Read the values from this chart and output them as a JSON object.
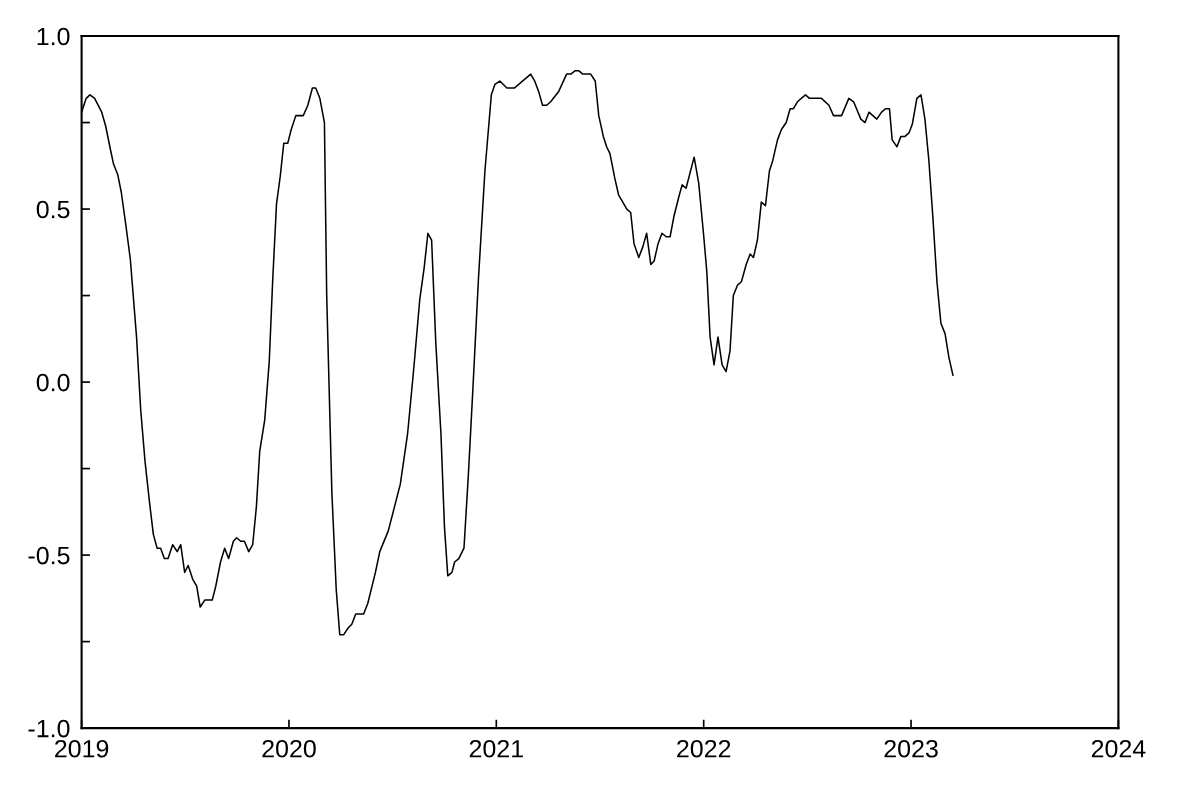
{
  "chart_data": {
    "type": "line",
    "xlim": [
      2019,
      2024
    ],
    "xticks": [
      2019,
      2020,
      2021,
      2022,
      2023,
      2024
    ],
    "ylim": [
      -1.0,
      1.0
    ],
    "yticks": [
      {
        "value": -1.0,
        "label": "-1.0"
      },
      {
        "value": -0.75,
        "label": null
      },
      {
        "value": -0.5,
        "label": "-0.5"
      },
      {
        "value": -0.25,
        "label": null
      },
      {
        "value": 0.0,
        "label": "0.0"
      },
      {
        "value": 0.25,
        "label": null
      },
      {
        "value": 0.5,
        "label": "0.5"
      },
      {
        "value": 0.75,
        "label": null
      },
      {
        "value": 1.0,
        "label": "1.0"
      }
    ],
    "grid": false,
    "marker": "none",
    "line_style": "solid",
    "series": [
      {
        "color": "#000000",
        "x": [
          2019.0,
          2019.022,
          2019.04,
          2019.063,
          2019.097,
          2019.116,
          2019.138,
          2019.154,
          2019.174,
          2019.191,
          2019.212,
          2019.235,
          2019.249,
          2019.265,
          2019.285,
          2019.306,
          2019.328,
          2019.346,
          2019.364,
          2019.381,
          2019.399,
          2019.417,
          2019.439,
          2019.461,
          2019.478,
          2019.497,
          2019.514,
          2019.536,
          2019.555,
          2019.572,
          2019.594,
          2019.63,
          2019.647,
          2019.67,
          2019.69,
          2019.709,
          2019.732,
          2019.748,
          2019.767,
          2019.785,
          2019.806,
          2019.825,
          2019.843,
          2019.859,
          2019.883,
          2019.905,
          2019.922,
          2019.94,
          2019.958,
          2019.975,
          2019.994,
          2020.011,
          2020.033,
          2020.069,
          2020.091,
          2020.113,
          2020.129,
          2020.149,
          2020.171,
          2020.182,
          2020.207,
          2020.228,
          2020.245,
          2020.264,
          2020.286,
          2020.303,
          2020.322,
          2020.36,
          2020.38,
          2020.417,
          2020.438,
          2020.479,
          2020.537,
          2020.572,
          2020.602,
          2020.631,
          2020.652,
          2020.67,
          2020.688,
          2020.708,
          2020.733,
          2020.75,
          2020.766,
          2020.786,
          2020.799,
          2020.819,
          2020.844,
          2020.865,
          2020.887,
          2020.914,
          2020.945,
          2020.976,
          2020.993,
          2021.017,
          2021.051,
          2021.088,
          2021.166,
          2021.185,
          2021.204,
          2021.223,
          2021.243,
          2021.262,
          2021.301,
          2021.339,
          2021.359,
          2021.381,
          2021.397,
          2021.417,
          2021.455,
          2021.477,
          2021.494,
          2021.516,
          2021.532,
          2021.548,
          2021.571,
          2021.59,
          2021.61,
          2021.629,
          2021.648,
          2021.664,
          2021.687,
          2021.706,
          2021.725,
          2021.745,
          2021.761,
          2021.78,
          2021.799,
          2021.819,
          2021.838,
          2021.857,
          2021.88,
          2021.896,
          2021.915,
          2021.954,
          2021.976,
          2021.999,
          2022.015,
          2022.031,
          2022.05,
          2022.069,
          2022.089,
          2022.108,
          2022.127,
          2022.143,
          2022.163,
          2022.182,
          2022.205,
          2022.224,
          2022.24,
          2022.259,
          2022.278,
          2022.298,
          2022.317,
          2022.333,
          2022.356,
          2022.375,
          2022.398,
          2022.417,
          2022.433,
          2022.452,
          2022.491,
          2022.51,
          2022.568,
          2022.604,
          2022.626,
          2022.665,
          2022.7,
          2022.723,
          2022.758,
          2022.778,
          2022.797,
          2022.835,
          2022.858,
          2022.877,
          2022.896,
          2022.909,
          2022.932,
          2022.951,
          2022.971,
          2022.99,
          2023.006,
          2023.028,
          2023.048,
          2023.067,
          2023.086,
          2023.106,
          2023.125,
          2023.144,
          2023.164,
          2023.183,
          2023.202
        ],
        "values": [
          0.78,
          0.82,
          0.83,
          0.82,
          0.78,
          0.74,
          0.675,
          0.63,
          0.6,
          0.55,
          0.46,
          0.355,
          0.25,
          0.13,
          -0.08,
          -0.23,
          -0.35,
          -0.44,
          -0.48,
          -0.48,
          -0.51,
          -0.51,
          -0.47,
          -0.49,
          -0.47,
          -0.55,
          -0.53,
          -0.57,
          -0.59,
          -0.65,
          -0.63,
          -0.63,
          -0.59,
          -0.52,
          -0.48,
          -0.51,
          -0.46,
          -0.45,
          -0.46,
          -0.46,
          -0.49,
          -0.47,
          -0.36,
          -0.2,
          -0.11,
          0.06,
          0.3,
          0.515,
          0.595,
          0.69,
          0.69,
          0.73,
          0.77,
          0.77,
          0.8,
          0.85,
          0.85,
          0.82,
          0.75,
          0.25,
          -0.32,
          -0.6,
          -0.73,
          -0.73,
          -0.71,
          -0.7,
          -0.67,
          -0.67,
          -0.64,
          -0.55,
          -0.49,
          -0.43,
          -0.295,
          -0.15,
          0.04,
          0.24,
          0.33,
          0.43,
          0.41,
          0.115,
          -0.15,
          -0.42,
          -0.56,
          -0.55,
          -0.52,
          -0.51,
          -0.48,
          -0.27,
          -0.02,
          0.3,
          0.61,
          0.83,
          0.86,
          0.87,
          0.85,
          0.85,
          0.89,
          0.87,
          0.84,
          0.8,
          0.8,
          0.81,
          0.84,
          0.89,
          0.89,
          0.9,
          0.9,
          0.89,
          0.89,
          0.87,
          0.77,
          0.71,
          0.68,
          0.66,
          0.59,
          0.54,
          0.52,
          0.5,
          0.49,
          0.4,
          0.36,
          0.39,
          0.43,
          0.34,
          0.35,
          0.4,
          0.43,
          0.42,
          0.42,
          0.48,
          0.535,
          0.57,
          0.56,
          0.65,
          0.575,
          0.43,
          0.32,
          0.13,
          0.05,
          0.13,
          0.05,
          0.03,
          0.09,
          0.25,
          0.28,
          0.29,
          0.34,
          0.37,
          0.36,
          0.41,
          0.52,
          0.51,
          0.61,
          0.64,
          0.7,
          0.73,
          0.75,
          0.79,
          0.79,
          0.81,
          0.83,
          0.82,
          0.82,
          0.8,
          0.77,
          0.77,
          0.82,
          0.81,
          0.76,
          0.75,
          0.78,
          0.76,
          0.78,
          0.79,
          0.79,
          0.7,
          0.68,
          0.71,
          0.71,
          0.72,
          0.745,
          0.82,
          0.83,
          0.76,
          0.64,
          0.47,
          0.29,
          0.17,
          0.14,
          0.07,
          0.02
        ]
      }
    ]
  }
}
